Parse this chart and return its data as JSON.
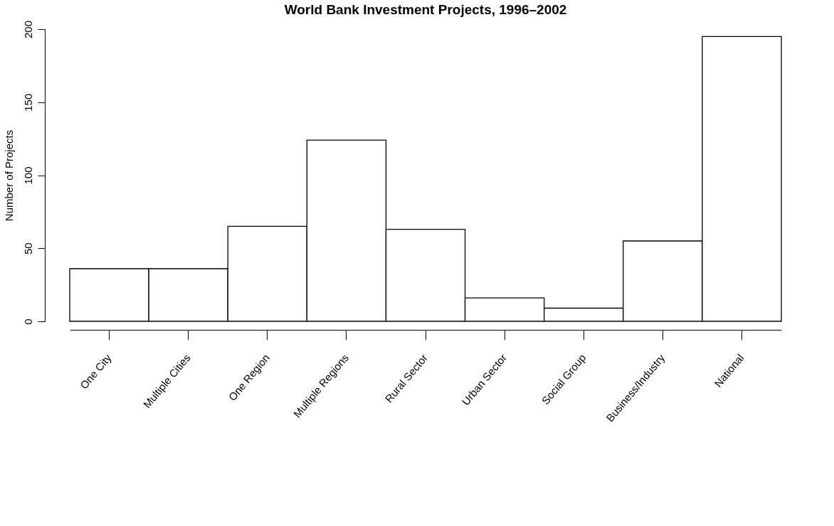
{
  "chart_data": {
    "type": "bar",
    "title": "World Bank Investment Projects, 1996–2002",
    "ylabel": "Number of Projects",
    "categories": [
      "One City",
      "Multiple Cities",
      "One Region",
      "Multiple Regions",
      "Rural Sector",
      "Urban Sector",
      "Social Group",
      "Business/Industry",
      "National"
    ],
    "values": [
      36,
      36,
      65,
      124,
      63,
      16,
      9,
      55,
      195
    ],
    "color": "#ffffff",
    "ylim": [
      0,
      200
    ],
    "yticks": [
      0,
      50,
      100,
      150,
      200
    ],
    "grid": false
  }
}
